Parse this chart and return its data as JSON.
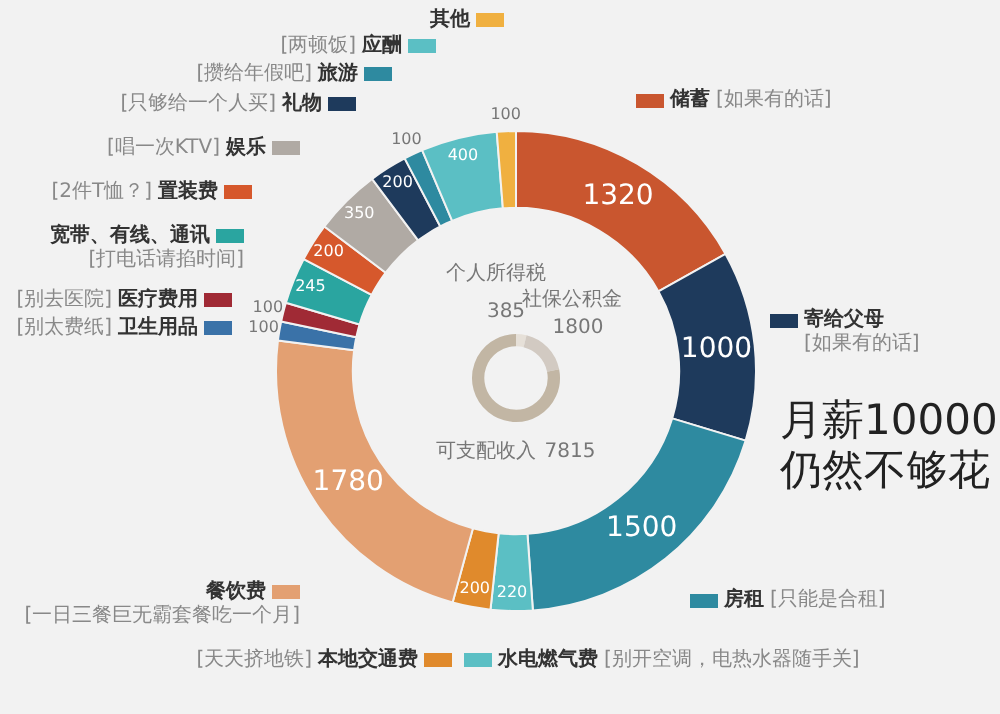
{
  "chart_data": [
    {
      "type": "donut",
      "title": "月薪10000",
      "subtitle": "仍然不够花",
      "categories": [
        "储蓄",
        "寄给父母",
        "房租",
        "水电燃气费",
        "本地交通费",
        "餐饮费",
        "卫生用品",
        "医疗费用",
        "宽带、有线、通讯",
        "置装费",
        "娱乐",
        "礼物",
        "旅游",
        "应酬",
        "其他"
      ],
      "values": [
        1320,
        1000,
        1500,
        220,
        200,
        1780,
        100,
        100,
        245,
        200,
        350,
        200,
        100,
        400,
        100
      ],
      "colors": [
        "#c9562f",
        "#1e3a5c",
        "#2e8aa0",
        "#5bbfc4",
        "#e08a2c",
        "#e3a072",
        "#3a72a8",
        "#a02a35",
        "#2aa5a0",
        "#d6582c",
        "#b0aaa4",
        "#1e3a5c",
        "#2e8aa0",
        "#5bbfc4",
        "#f0b040"
      ],
      "data_labels": true,
      "legend": "left",
      "annotations": [
        {
          "text": "[如果有的话]",
          "x": "储蓄"
        },
        {
          "text": "[如果有的话]",
          "x": "寄给父母"
        },
        {
          "text": "[只能是合租]",
          "x": "房租"
        },
        {
          "text": "[别开空调，电热水器随手关]",
          "x": "水电燃气费"
        },
        {
          "text": "[天天挤地铁]",
          "x": "本地交通费"
        },
        {
          "text": "[一日三餐巨无霸套餐吃一个月]",
          "x": "餐饮费"
        },
        {
          "text": "[别太费纸]",
          "x": "卫生用品"
        },
        {
          "text": "[别去医院]",
          "x": "医疗费用"
        },
        {
          "text": "[打电话请掐时间]",
          "x": "宽带、有线、通讯"
        },
        {
          "text": "[2件T恤？]",
          "x": "置装费"
        },
        {
          "text": "[唱一次KTV]",
          "x": "娱乐"
        },
        {
          "text": "[只够给一个人买]",
          "x": "礼物"
        },
        {
          "text": "[攒给年假吧]",
          "x": "旅游"
        },
        {
          "text": "[两顿饭]",
          "x": "应酬"
        }
      ]
    },
    {
      "type": "donut",
      "categories": [
        "个人所得税",
        "社保公积金",
        "可支配收入"
      ],
      "values": [
        385,
        1800,
        7815
      ],
      "colors": [
        "#e6e0d8",
        "#d2cac2",
        "#c2b6a4"
      ],
      "data_labels": true
    }
  ]
}
